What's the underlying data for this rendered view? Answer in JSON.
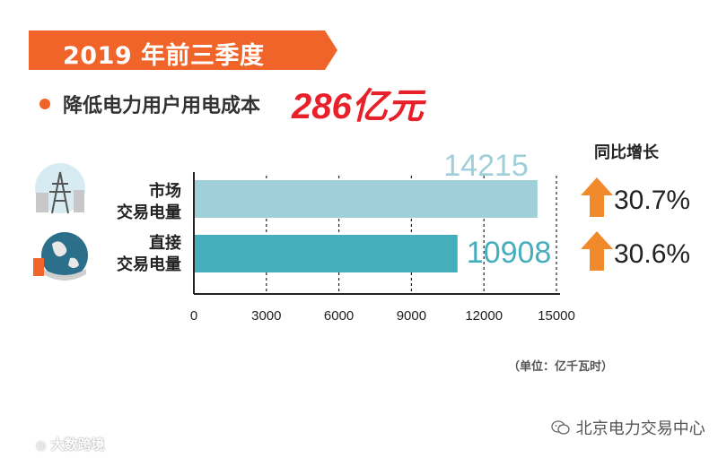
{
  "header": {
    "banner_title": "2019 年前三季度",
    "subtitle_label": "降低电力用户用电成本",
    "subtitle_value": "286亿元"
  },
  "growth": {
    "header": "同比增长",
    "items": [
      "30.7%",
      "30.6%"
    ]
  },
  "unit": "（单位：亿千瓦时）",
  "footer": {
    "source": "北京电力交易中心",
    "watermark": "大数跨境"
  },
  "icons": [
    "power-tower-icon",
    "globe-hand-icon",
    "up-arrow-icon",
    "wechat-icon",
    "camera-icon"
  ],
  "colors": {
    "accent": "#f0642a",
    "highlight": "#e8202a",
    "bar_market": "#9fcfd9",
    "bar_direct": "#46adbd",
    "arrow": "#f08a2a"
  },
  "chart_data": {
    "type": "bar",
    "orientation": "horizontal",
    "categories": [
      [
        "市场",
        "交易电量"
      ],
      [
        "直接",
        "交易电量"
      ]
    ],
    "values": [
      14215,
      10908
    ],
    "value_labels": [
      "14215",
      "10908"
    ],
    "xlim": [
      0,
      15000
    ],
    "x_ticks": [
      0,
      3000,
      6000,
      9000,
      12000,
      15000
    ],
    "x_tick_labels": [
      "0",
      "3000",
      "6000",
      "9000",
      "12000",
      "15000"
    ],
    "grid": "dashed vertical"
  }
}
